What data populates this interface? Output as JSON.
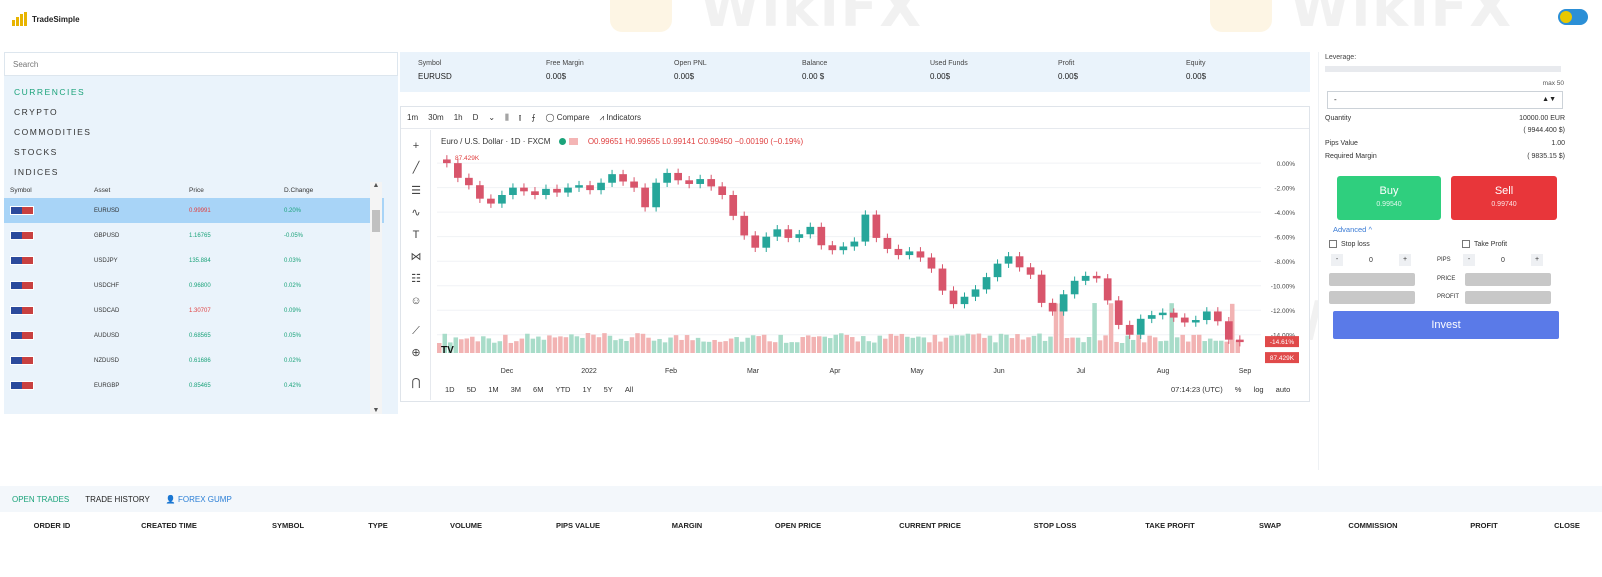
{
  "app": {
    "logo_text": "TradeSimple"
  },
  "search": {
    "placeholder": "Search"
  },
  "categories": [
    "CURRENCIES",
    "CRYPTO",
    "COMMODITIES",
    "STOCKS",
    "INDICES"
  ],
  "asset_table": {
    "headers": [
      "Symbol",
      "Asset",
      "Price",
      "D.Change"
    ],
    "rows": [
      {
        "asset": "EURUSD",
        "price": "0.99991",
        "change": "0.20%",
        "price_color": "red"
      },
      {
        "asset": "GBPUSD",
        "price": "1.16765",
        "change": "-0.05%",
        "price_color": "green"
      },
      {
        "asset": "USDJPY",
        "price": "135.884",
        "change": "0.03%",
        "price_color": "green"
      },
      {
        "asset": "USDCHF",
        "price": "0.96800",
        "change": "0.02%",
        "price_color": "green"
      },
      {
        "asset": "USDCAD",
        "price": "1.30707",
        "change": "0.09%",
        "price_color": "red"
      },
      {
        "asset": "AUDUSD",
        "price": "0.68565",
        "change": "0.05%",
        "price_color": "green"
      },
      {
        "asset": "NZDUSD",
        "price": "0.61686",
        "change": "0.02%",
        "price_color": "green"
      },
      {
        "asset": "EURGBP",
        "price": "0.85465",
        "change": "0.42%",
        "price_color": "green"
      }
    ]
  },
  "stats": [
    {
      "label": "Symbol",
      "value": "EURUSD"
    },
    {
      "label": "Free Margin",
      "value": "0.00$"
    },
    {
      "label": "Open PNL",
      "value": "0.00$"
    },
    {
      "label": "Balance",
      "value": "0.00 $"
    },
    {
      "label": "Used Funds",
      "value": "0.00$"
    },
    {
      "label": "Profit",
      "value": "0.00$"
    },
    {
      "label": "Equity",
      "value": "0.00$"
    }
  ],
  "chart_toolbar": {
    "intervals": [
      "1m",
      "30m",
      "1h",
      "D"
    ],
    "compare": "Compare",
    "indicators": "Indicators"
  },
  "chart_title": {
    "name": "Euro / U.S. Dollar · 1D · FXCM",
    "ohlc": "O0.99651 H0.99655 L0.99141 C0.99450 −0.00190 (−0.19%)",
    "volume_tag": "87.429K"
  },
  "chart_data": {
    "type": "candlestick",
    "x_labels": [
      "Dec",
      "2022",
      "Feb",
      "Mar",
      "Apr",
      "May",
      "Jun",
      "Jul",
      "Aug",
      "Sep"
    ],
    "y_labels": [
      "0.00%",
      "-2.00%",
      "-4.00%",
      "-6.00%",
      "-8.00%",
      "-10.00%",
      "-12.00%",
      "-14.00%"
    ],
    "last_value_tag": "-14.61%",
    "volume_label": "87.429K",
    "close_percent": [
      0.0,
      -1.2,
      -1.8,
      -2.9,
      -3.3,
      -2.6,
      -2.0,
      -2.3,
      -2.6,
      -2.1,
      -2.4,
      -2.0,
      -1.8,
      -2.2,
      -1.6,
      -0.9,
      -1.5,
      -2.0,
      -3.6,
      -1.6,
      -0.8,
      -1.4,
      -1.7,
      -1.3,
      -1.9,
      -2.6,
      -4.3,
      -5.9,
      -6.9,
      -6.0,
      -5.4,
      -6.1,
      -5.8,
      -5.2,
      -6.7,
      -7.1,
      -6.8,
      -6.4,
      -4.2,
      -6.1,
      -7.0,
      -7.5,
      -7.2,
      -7.7,
      -8.6,
      -10.4,
      -11.5,
      -10.9,
      -10.3,
      -9.3,
      -8.2,
      -7.6,
      -8.5,
      -9.1,
      -11.4,
      -12.1,
      -10.7,
      -9.6,
      -9.2,
      -9.4,
      -11.2,
      -13.2,
      -14.0,
      -12.7,
      -12.4,
      -12.2,
      -12.6,
      -13.0,
      -12.8,
      -12.1,
      -12.9,
      -14.4,
      -14.6
    ],
    "ylim": [
      -15.0,
      0.5
    ]
  },
  "time_ranges": [
    "1D",
    "5D",
    "1M",
    "3M",
    "6M",
    "YTD",
    "1Y",
    "5Y",
    "All"
  ],
  "chart_footer": {
    "time": "07:14:23 (UTC)",
    "percent": "%",
    "log": "log",
    "auto": "auto"
  },
  "right_panel": {
    "leverage_label": "Leverage:",
    "leverage_max": "max 50",
    "select_value": "-",
    "quantity_label": "Quantity",
    "quantity_value": "10000.00 EUR",
    "quantity_sub": "( 9944.400 $)",
    "pips_label": "Pips Value",
    "pips_value": "1.00",
    "margin_label": "Required Margin",
    "margin_value": "( 9835.15 $)",
    "buy_label": "Buy",
    "buy_price": "0.99540",
    "sell_label": "Sell",
    "sell_price": "0.99740",
    "advanced": "Advanced ^",
    "stop_loss": "Stop loss",
    "take_profit": "Take Profit",
    "stepper_value": "0",
    "pips_short": "PIPS",
    "price_short": "PRICE",
    "profit_short": "PROFIT",
    "invest": "Invest"
  },
  "bottom": {
    "tabs": [
      "OPEN TRADES",
      "TRADE HISTORY",
      "FOREX GUMP"
    ],
    "columns": [
      "ORDER ID",
      "CREATED TIME",
      "SYMBOL",
      "TYPE",
      "VOLUME",
      "PIPS VALUE",
      "MARGIN",
      "OPEN PRICE",
      "CURRENT PRICE",
      "STOP LOSS",
      "TAKE PROFIT",
      "SWAP",
      "COMMISSION",
      "PROFIT",
      "CLOSE"
    ]
  },
  "watermark": "WikiFX",
  "colors": {
    "buy": "#2fcf7e",
    "sell": "#e8363a",
    "invest": "#5a7ae8",
    "accent_green": "#1ba37a",
    "selected_row": "#a8d4f7"
  }
}
